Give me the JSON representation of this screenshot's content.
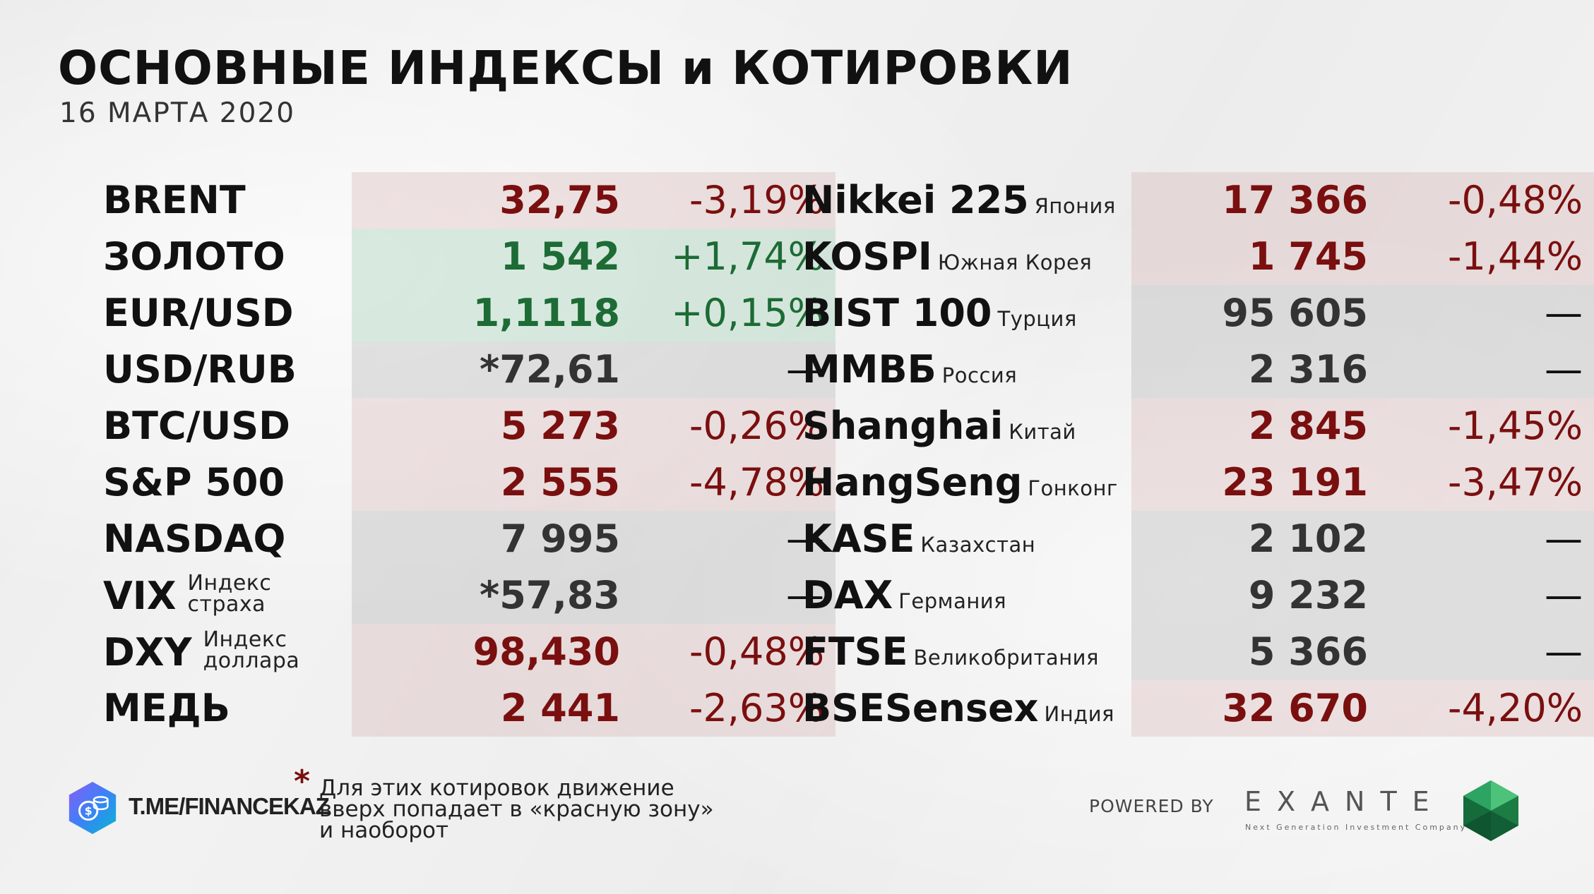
{
  "header": {
    "title": "ОСНОВНЫЕ ИНДЕКСЫ и КОТИРОВКИ",
    "date": "16 МАРТА 2020"
  },
  "left_table": [
    {
      "name": "BRENT",
      "value": "32,75",
      "change": "-3,19%",
      "status": "neg"
    },
    {
      "name": "ЗОЛОТО",
      "value": "1 542",
      "change": "+1,74%",
      "status": "pos"
    },
    {
      "name": "EUR/USD",
      "value": "1,1118",
      "change": "+0,15%",
      "status": "pos"
    },
    {
      "name": "USD/RUB",
      "value": "*72,61",
      "change": "—",
      "status": "neu"
    },
    {
      "name": "BTC/USD",
      "value": "5 273",
      "change": "-0,26%",
      "status": "neg"
    },
    {
      "name": "S&P 500",
      "value": "2 555",
      "change": "-4,78%",
      "status": "neg"
    },
    {
      "name": "NASDAQ",
      "value": "7 995",
      "change": "—",
      "status": "neu"
    },
    {
      "name": "VIX",
      "sub_line1": "Индекс",
      "sub_line2": "страха",
      "value": "*57,83",
      "change": "—",
      "status": "neu"
    },
    {
      "name": "DXY",
      "sub_line1": "Индекс",
      "sub_line2": "доллара",
      "value": "98,430",
      "change": "-0,48%",
      "status": "neg"
    },
    {
      "name": "МЕДЬ",
      "value": "2 441",
      "change": "-2,63%",
      "status": "neg"
    }
  ],
  "right_table": [
    {
      "name": "Nikkei 225",
      "country": "Япония",
      "value": "17 366",
      "change": "-0,48%",
      "status": "neg"
    },
    {
      "name": "KOSPI",
      "country": "Южная Корея",
      "value": "1 745",
      "change": "-1,44%",
      "status": "neg"
    },
    {
      "name": "BIST 100",
      "country": "Турция",
      "value": "95 605",
      "change": "—",
      "status": "neu"
    },
    {
      "name": "ММВБ",
      "country": "Россия",
      "value": "2 316",
      "change": "—",
      "status": "neu"
    },
    {
      "name": "Shanghai",
      "country": "Китай",
      "value": "2 845",
      "change": "-1,45%",
      "status": "neg"
    },
    {
      "name": "HangSeng",
      "country": "Гонконг",
      "value": "23 191",
      "change": "-3,47%",
      "status": "neg"
    },
    {
      "name": "KASE",
      "country": "Казахстан",
      "value": "2 102",
      "change": "—",
      "status": "neu"
    },
    {
      "name": "DAX",
      "country": "Германия",
      "value": "9 232",
      "change": "—",
      "status": "neu"
    },
    {
      "name": "FTSE",
      "country": "Великобритания",
      "value": "5 366",
      "change": "—",
      "status": "neu"
    },
    {
      "name": "BSESensex",
      "country": "Индия",
      "value": "32 670",
      "change": "-4,20%",
      "status": "neg"
    }
  ],
  "footer": {
    "channel": "T.ME/FINANCEKAZ",
    "note_star": "*",
    "note_line1": "Для этих котировок движение",
    "note_line2": "вверх попадает в «красную зону»",
    "note_line3": "и наоборот",
    "powered_by": "POWERED BY",
    "brand": "EXANTE",
    "brand_tagline": "Next Generation Investment Company"
  },
  "colors": {
    "negative": "#7a0f0f",
    "positive": "#1d6b35",
    "negative_bg": "#e8c9c9",
    "positive_bg": "#cde4d4",
    "neutral_bg": "#d6d6d6"
  }
}
